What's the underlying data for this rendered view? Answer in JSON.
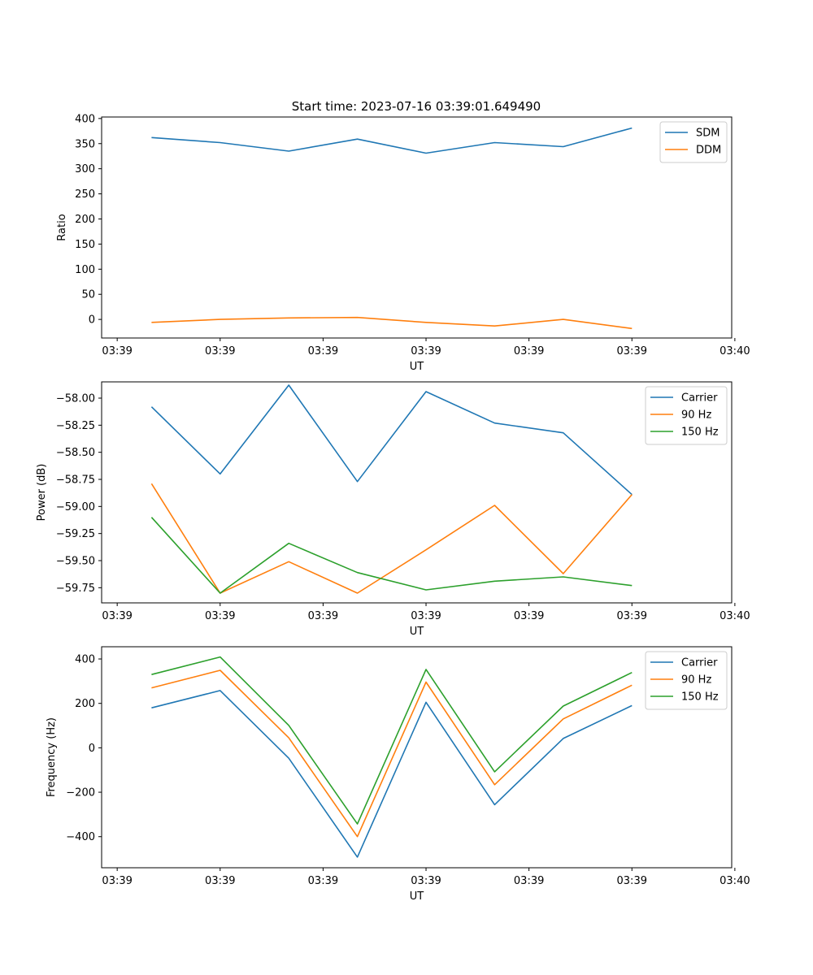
{
  "figure": {
    "title": "Start time: 2023-07-16 03:39:01.649490"
  },
  "chart_data": [
    {
      "type": "line",
      "title": "Start time: 2023-07-16 03:39:01.649490",
      "xlabel": "UT",
      "ylabel": "Ratio",
      "x_tick_labels": [
        "03:39",
        "03:39",
        "03:39",
        "03:39",
        "03:39",
        "03:39",
        "03:40"
      ],
      "x": [
        1,
        2,
        3,
        4,
        5,
        6,
        7,
        8
      ],
      "xlim": [
        0.273,
        9.454
      ],
      "x_tick_positions": [
        0.5,
        2,
        3.5,
        5,
        6.5,
        8,
        9.5
      ],
      "ylim": [
        -37,
        403
      ],
      "y_ticks": [
        0,
        50,
        100,
        150,
        200,
        250,
        300,
        350,
        400
      ],
      "y_tick_labels": [
        "0",
        "50",
        "100",
        "150",
        "200",
        "250",
        "300",
        "350",
        "400"
      ],
      "legend_position": "top-right",
      "series": [
        {
          "name": "SDM",
          "color": "#1f77b4",
          "values": [
            362,
            352,
            335,
            359,
            331,
            352,
            344,
            381
          ]
        },
        {
          "name": "DDM",
          "color": "#ff7f0e",
          "values": [
            -6,
            0,
            3,
            4,
            -6,
            -13,
            0,
            -18
          ]
        }
      ]
    },
    {
      "type": "line",
      "title": "",
      "xlabel": "UT",
      "ylabel": "Power (dB)",
      "x_tick_labels": [
        "03:39",
        "03:39",
        "03:39",
        "03:39",
        "03:39",
        "03:39",
        "03:40"
      ],
      "x": [
        1,
        2,
        3,
        4,
        5,
        6,
        7,
        8
      ],
      "xlim": [
        0.273,
        9.454
      ],
      "x_tick_positions": [
        0.5,
        2,
        3.5,
        5,
        6.5,
        8,
        9.5
      ],
      "ylim": [
        -59.89,
        -57.85
      ],
      "y_ticks": [
        -59.75,
        -59.5,
        -59.25,
        -59.0,
        -58.75,
        -58.5,
        -58.25,
        -58.0
      ],
      "y_tick_labels": [
        "−59.75",
        "−59.50",
        "−59.25",
        "−59.00",
        "−58.75",
        "−58.50",
        "−58.25",
        "−58.00"
      ],
      "legend_position": "top-right",
      "series": [
        {
          "name": "Carrier",
          "color": "#1f77b4",
          "values": [
            -58.08,
            -58.7,
            -57.88,
            -58.77,
            -57.94,
            -58.23,
            -58.32,
            -58.89
          ]
        },
        {
          "name": "90 Hz",
          "color": "#ff7f0e",
          "values": [
            -58.79,
            -59.8,
            -59.51,
            -59.8,
            -59.4,
            -58.99,
            -59.62,
            -58.89
          ]
        },
        {
          "name": "150 Hz",
          "color": "#2ca02c",
          "values": [
            -59.1,
            -59.8,
            -59.34,
            -59.61,
            -59.77,
            -59.69,
            -59.65,
            -59.73
          ]
        }
      ]
    },
    {
      "type": "line",
      "title": "",
      "xlabel": "UT",
      "ylabel": "Frequency (Hz)",
      "x_tick_labels": [
        "03:39",
        "03:39",
        "03:39",
        "03:39",
        "03:39",
        "03:39",
        "03:40"
      ],
      "x": [
        1,
        2,
        3,
        4,
        5,
        6,
        7,
        8
      ],
      "xlim": [
        0.273,
        9.454
      ],
      "x_tick_positions": [
        0.5,
        2,
        3.5,
        5,
        6.5,
        8,
        9.5
      ],
      "ylim": [
        -540,
        455
      ],
      "y_ticks": [
        -400,
        -200,
        0,
        200,
        400
      ],
      "y_tick_labels": [
        "−400",
        "−200",
        "0",
        "200",
        "400"
      ],
      "legend_position": "top-right",
      "series": [
        {
          "name": "Carrier",
          "color": "#1f77b4",
          "values": [
            180,
            258,
            -47,
            -492,
            205,
            -256,
            42,
            190
          ]
        },
        {
          "name": "90 Hz",
          "color": "#ff7f0e",
          "values": [
            270,
            349,
            45,
            -400,
            296,
            -166,
            130,
            282
          ]
        },
        {
          "name": "150 Hz",
          "color": "#2ca02c",
          "values": [
            330,
            409,
            101,
            -343,
            353,
            -108,
            188,
            339
          ]
        }
      ]
    }
  ]
}
